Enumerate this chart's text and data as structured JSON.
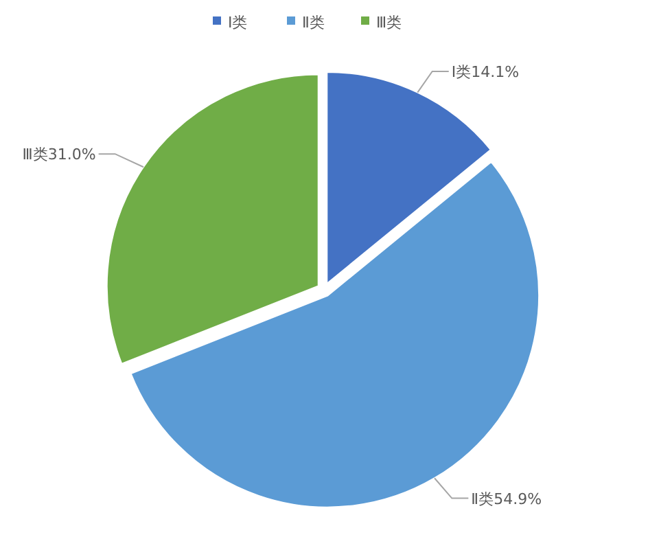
{
  "chart_data": {
    "type": "pie",
    "categories": [
      "Ⅰ类",
      "Ⅱ类",
      "Ⅲ类"
    ],
    "values": [
      14.1,
      54.9,
      31.0
    ],
    "value_labels": [
      "14.1%",
      "54.9%",
      "31.0%"
    ],
    "colors": [
      "#4472c4",
      "#5b9bd5",
      "#70ad47"
    ],
    "legend": "top"
  }
}
